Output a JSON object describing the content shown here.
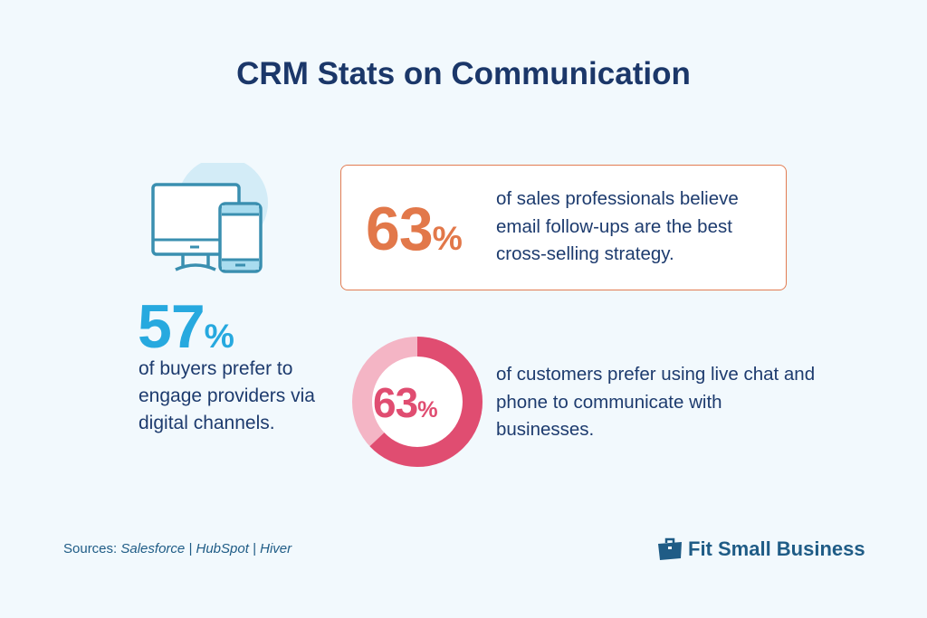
{
  "title": "CRM Stats on Communication",
  "stats": [
    {
      "value": "63",
      "unit": "%",
      "text": "of sales professionals believe email follow-ups are the best cross-selling strategy.",
      "color": "#e2784a"
    },
    {
      "value": "57",
      "unit": "%",
      "text": "of buyers prefer to engage providers via digital channels.",
      "color": "#27a9df",
      "icon": "desktop-and-phone-icon"
    },
    {
      "value": "63",
      "unit": "%",
      "text": "of customers prefer using live chat and phone to communicate with businesses.",
      "color": "#e04d71",
      "donut_fraction": 0.63
    }
  ],
  "sources": {
    "label": "Sources:",
    "items": [
      "Salesforce",
      "HubSpot",
      "Hiver"
    ],
    "separator": "|"
  },
  "logo": {
    "text": "Fit Small Business",
    "icon": "briefcase-icon"
  }
}
